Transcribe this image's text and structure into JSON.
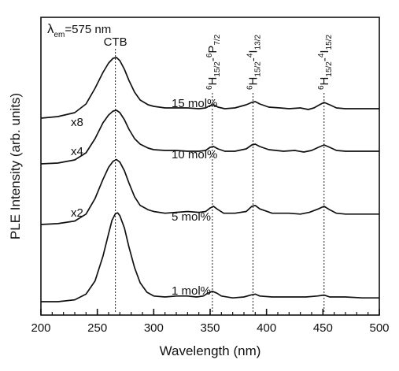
{
  "chart_data": {
    "type": "line",
    "xlabel": "Wavelength (nm)",
    "ylabel": "PLE Intensity (arb. units)",
    "xlim": [
      200,
      500
    ],
    "x_ticks": [
      200,
      250,
      300,
      350,
      400,
      450,
      500
    ],
    "y_ticks_labels": "none",
    "excitation_note": {
      "symbol": "λ",
      "subscript": "em",
      "value": "=575 nm"
    },
    "band_labels": [
      {
        "name": "CTB",
        "x": 266
      },
      {
        "name": "6H15/2-6P7/2",
        "x": 352,
        "parts": [
          "6",
          "H",
          "15/2",
          "-",
          "6",
          "P",
          "7/2"
        ]
      },
      {
        "name": "6H15/2-4I13/2",
        "x": 388,
        "parts": [
          "6",
          "H",
          "15/2",
          "-",
          "4",
          "I",
          "13/2"
        ]
      },
      {
        "name": "6H15/2-4I15/2",
        "x": 451,
        "parts": [
          "6",
          "H",
          "15/2",
          "-",
          "4",
          "I",
          "15/2"
        ]
      }
    ],
    "series": [
      {
        "name": "1 mol%",
        "multiplier": "",
        "points": [
          [
            200,
            0.0
          ],
          [
            215,
            0.0
          ],
          [
            230,
            0.02
          ],
          [
            240,
            0.08
          ],
          [
            248,
            0.22
          ],
          [
            255,
            0.48
          ],
          [
            260,
            0.72
          ],
          [
            263,
            0.86
          ],
          [
            266,
            0.93
          ],
          [
            268,
            0.94
          ],
          [
            270,
            0.91
          ],
          [
            274,
            0.78
          ],
          [
            278,
            0.58
          ],
          [
            283,
            0.36
          ],
          [
            288,
            0.2
          ],
          [
            294,
            0.1
          ],
          [
            300,
            0.06
          ],
          [
            310,
            0.05
          ],
          [
            320,
            0.06
          ],
          [
            330,
            0.06
          ],
          [
            338,
            0.05
          ],
          [
            344,
            0.06
          ],
          [
            348,
            0.09
          ],
          [
            352,
            0.11
          ],
          [
            356,
            0.09
          ],
          [
            360,
            0.06
          ],
          [
            370,
            0.04
          ],
          [
            380,
            0.05
          ],
          [
            386,
            0.07
          ],
          [
            390,
            0.08
          ],
          [
            394,
            0.06
          ],
          [
            405,
            0.05
          ],
          [
            420,
            0.05
          ],
          [
            435,
            0.05
          ],
          [
            445,
            0.06
          ],
          [
            451,
            0.07
          ],
          [
            456,
            0.05
          ],
          [
            470,
            0.05
          ],
          [
            485,
            0.04
          ],
          [
            500,
            0.04
          ]
        ]
      },
      {
        "name": "5 mol%",
        "multiplier": "x2",
        "points": [
          [
            200,
            0.0
          ],
          [
            215,
            0.01
          ],
          [
            230,
            0.04
          ],
          [
            240,
            0.12
          ],
          [
            248,
            0.3
          ],
          [
            255,
            0.52
          ],
          [
            260,
            0.66
          ],
          [
            264,
            0.73
          ],
          [
            267,
            0.75
          ],
          [
            270,
            0.72
          ],
          [
            274,
            0.62
          ],
          [
            278,
            0.48
          ],
          [
            283,
            0.32
          ],
          [
            288,
            0.22
          ],
          [
            295,
            0.17
          ],
          [
            300,
            0.15
          ],
          [
            310,
            0.13
          ],
          [
            320,
            0.14
          ],
          [
            330,
            0.15
          ],
          [
            340,
            0.14
          ],
          [
            346,
            0.15
          ],
          [
            350,
            0.19
          ],
          [
            353,
            0.21
          ],
          [
            356,
            0.18
          ],
          [
            362,
            0.13
          ],
          [
            372,
            0.13
          ],
          [
            382,
            0.15
          ],
          [
            387,
            0.21
          ],
          [
            390,
            0.22
          ],
          [
            394,
            0.18
          ],
          [
            405,
            0.13
          ],
          [
            420,
            0.13
          ],
          [
            430,
            0.12
          ],
          [
            438,
            0.14
          ],
          [
            446,
            0.18
          ],
          [
            451,
            0.21
          ],
          [
            456,
            0.17
          ],
          [
            462,
            0.13
          ],
          [
            470,
            0.12
          ],
          [
            485,
            0.12
          ],
          [
            500,
            0.12
          ]
        ]
      },
      {
        "name": "10 mol%",
        "multiplier": "x4",
        "points": [
          [
            200,
            0.0
          ],
          [
            215,
            0.01
          ],
          [
            230,
            0.05
          ],
          [
            240,
            0.14
          ],
          [
            248,
            0.32
          ],
          [
            255,
            0.52
          ],
          [
            260,
            0.62
          ],
          [
            264,
            0.67
          ],
          [
            267,
            0.68
          ],
          [
            270,
            0.65
          ],
          [
            274,
            0.56
          ],
          [
            278,
            0.44
          ],
          [
            283,
            0.32
          ],
          [
            288,
            0.25
          ],
          [
            295,
            0.2
          ],
          [
            300,
            0.18
          ],
          [
            310,
            0.17
          ],
          [
            320,
            0.17
          ],
          [
            330,
            0.16
          ],
          [
            340,
            0.16
          ],
          [
            346,
            0.17
          ],
          [
            350,
            0.21
          ],
          [
            353,
            0.22
          ],
          [
            357,
            0.19
          ],
          [
            363,
            0.16
          ],
          [
            372,
            0.16
          ],
          [
            382,
            0.19
          ],
          [
            387,
            0.24
          ],
          [
            390,
            0.25
          ],
          [
            394,
            0.22
          ],
          [
            402,
            0.18
          ],
          [
            415,
            0.16
          ],
          [
            425,
            0.17
          ],
          [
            433,
            0.15
          ],
          [
            440,
            0.17
          ],
          [
            446,
            0.21
          ],
          [
            451,
            0.24
          ],
          [
            456,
            0.21
          ],
          [
            462,
            0.17
          ],
          [
            470,
            0.16
          ],
          [
            485,
            0.16
          ],
          [
            500,
            0.16
          ]
        ]
      },
      {
        "name": "15 mol%",
        "multiplier": "x8",
        "points": [
          [
            200,
            0.0
          ],
          [
            215,
            0.02
          ],
          [
            230,
            0.07
          ],
          [
            240,
            0.18
          ],
          [
            248,
            0.38
          ],
          [
            255,
            0.58
          ],
          [
            260,
            0.7
          ],
          [
            264,
            0.76
          ],
          [
            267,
            0.77
          ],
          [
            270,
            0.73
          ],
          [
            274,
            0.62
          ],
          [
            278,
            0.48
          ],
          [
            283,
            0.33
          ],
          [
            288,
            0.23
          ],
          [
            295,
            0.17
          ],
          [
            300,
            0.15
          ],
          [
            310,
            0.13
          ],
          [
            320,
            0.13
          ],
          [
            330,
            0.13
          ],
          [
            340,
            0.12
          ],
          [
            346,
            0.13
          ],
          [
            350,
            0.16
          ],
          [
            353,
            0.17
          ],
          [
            357,
            0.14
          ],
          [
            363,
            0.12
          ],
          [
            372,
            0.13
          ],
          [
            382,
            0.17
          ],
          [
            387,
            0.2
          ],
          [
            390,
            0.21
          ],
          [
            394,
            0.18
          ],
          [
            402,
            0.14
          ],
          [
            412,
            0.13
          ],
          [
            420,
            0.12
          ],
          [
            430,
            0.13
          ],
          [
            437,
            0.11
          ],
          [
            442,
            0.13
          ],
          [
            447,
            0.17
          ],
          [
            451,
            0.2
          ],
          [
            456,
            0.17
          ],
          [
            462,
            0.13
          ],
          [
            470,
            0.12
          ],
          [
            485,
            0.12
          ],
          [
            500,
            0.12
          ]
        ]
      }
    ]
  }
}
